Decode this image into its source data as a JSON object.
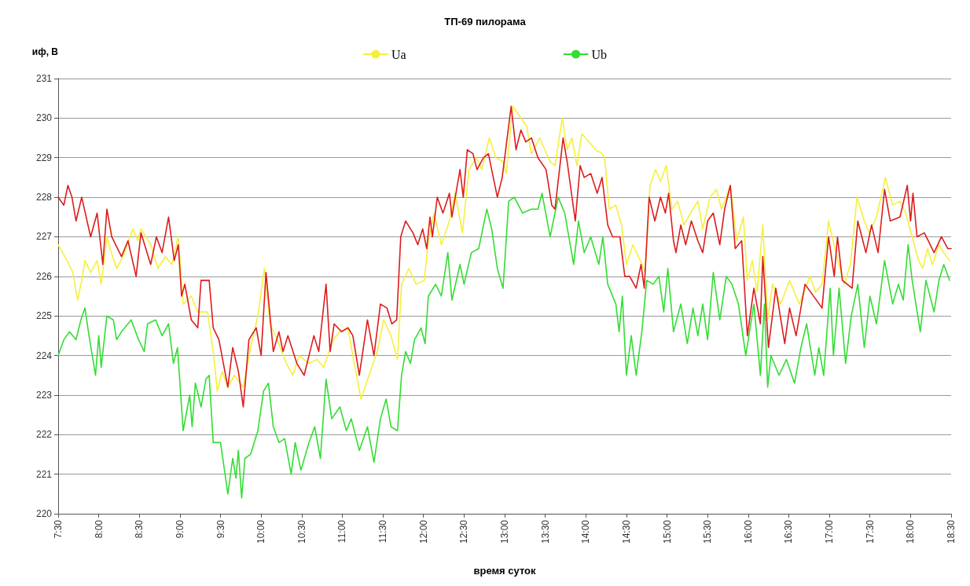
{
  "chart_data": {
    "type": "line",
    "title": "ТП-69 пилорама",
    "xlabel": "время суток",
    "ylabel": "иф, В",
    "xlim": [
      7.5,
      18.5
    ],
    "xticks": [
      {
        "value": 7.5,
        "label": "7:30"
      },
      {
        "value": 8,
        "label": "8:00"
      },
      {
        "value": 8.5,
        "label": "8:30"
      },
      {
        "value": 9,
        "label": "9:00"
      },
      {
        "value": 9.5,
        "label": "9:30"
      },
      {
        "value": 10,
        "label": "10:00"
      },
      {
        "value": 10.5,
        "label": "10:30"
      },
      {
        "value": 11,
        "label": "11:00"
      },
      {
        "value": 11.5,
        "label": "11:30"
      },
      {
        "value": 12,
        "label": "12:00"
      },
      {
        "value": 12.5,
        "label": "12:30"
      },
      {
        "value": 13,
        "label": "13:00"
      },
      {
        "value": 13.5,
        "label": "13:30"
      },
      {
        "value": 14,
        "label": "14:00"
      },
      {
        "value": 14.5,
        "label": "14:30"
      },
      {
        "value": 15,
        "label": "15:00"
      },
      {
        "value": 15.5,
        "label": "15:30"
      },
      {
        "value": 16,
        "label": "16:00"
      },
      {
        "value": 16.5,
        "label": "16:30"
      },
      {
        "value": 17,
        "label": "17:00"
      },
      {
        "value": 17.5,
        "label": "17:30"
      },
      {
        "value": 18,
        "label": "18:00"
      },
      {
        "value": 18.5,
        "label": "18:30"
      }
    ],
    "ylim": [
      220,
      231
    ],
    "yticks": [
      220,
      221,
      222,
      223,
      224,
      225,
      226,
      227,
      228,
      229,
      230,
      231
    ],
    "grid": "y",
    "legend": "top",
    "marker": "none",
    "line_style": "solid",
    "series": [
      {
        "name": "Ua",
        "color": "#f5f03c",
        "x": [
          7.5,
          7.61,
          7.68,
          7.74,
          7.79,
          7.83,
          7.9,
          7.98,
          8.03,
          8.1,
          8.14,
          8.22,
          8.3,
          8.42,
          8.48,
          8.52,
          8.64,
          8.73,
          8.82,
          8.9,
          8.98,
          9.04,
          9.14,
          9.22,
          9.34,
          9.41,
          9.46,
          9.52,
          9.59,
          9.67,
          9.78,
          9.87,
          9.96,
          10.04,
          10.11,
          10.22,
          10.31,
          10.39,
          10.47,
          10.59,
          10.69,
          10.77,
          10.89,
          10.97,
          11.07,
          11.13,
          11.23,
          11.33,
          11.43,
          11.51,
          11.6,
          11.68,
          11.73,
          11.82,
          11.91,
          12.01,
          12.06,
          12.13,
          12.22,
          12.32,
          12.39,
          12.48,
          12.56,
          12.65,
          12.72,
          12.81,
          12.89,
          12.98,
          13.02,
          13.1,
          13.27,
          13.33,
          13.43,
          13.56,
          13.62,
          13.71,
          13.77,
          13.83,
          13.89,
          13.95,
          14.04,
          14.12,
          14.2,
          14.23,
          14.29,
          14.37,
          14.44,
          14.5,
          14.58,
          14.67,
          14.73,
          14.79,
          14.86,
          14.92,
          14.99,
          15.06,
          15.13,
          15.21,
          15.29,
          15.38,
          15.44,
          15.53,
          15.61,
          15.67,
          15.73,
          15.78,
          15.86,
          15.94,
          15.99,
          16.05,
          16.11,
          16.18,
          16.24,
          16.3,
          16.4,
          16.51,
          16.63,
          16.76,
          16.83,
          16.91,
          16.99,
          17.08,
          17.18,
          17.26,
          17.34,
          17.43,
          17.49,
          17.58,
          17.69,
          17.78,
          17.87,
          17.94,
          18.02,
          18.1,
          18.15,
          18.21,
          18.27,
          18.35,
          18.41,
          18.48
        ],
        "values": [
          226.8,
          226.4,
          226.1,
          225.4,
          225.9,
          226.4,
          226.1,
          226.4,
          225.8,
          227.0,
          226.7,
          226.2,
          226.5,
          227.2,
          226.9,
          227.2,
          226.8,
          226.2,
          226.5,
          226.3,
          227.0,
          225.3,
          225.5,
          225.1,
          225.1,
          224.1,
          223.1,
          223.6,
          223.2,
          223.5,
          223.2,
          224.2,
          225.0,
          226.2,
          224.8,
          224.3,
          223.8,
          223.5,
          224.0,
          223.8,
          223.9,
          223.7,
          224.4,
          224.6,
          224.7,
          224.0,
          222.9,
          223.5,
          224.1,
          224.9,
          224.5,
          223.9,
          225.8,
          226.2,
          225.8,
          225.9,
          226.9,
          227.6,
          226.8,
          227.4,
          228.1,
          227.1,
          228.7,
          229.0,
          228.7,
          229.5,
          229.0,
          228.9,
          228.6,
          230.3,
          229.8,
          229.1,
          229.5,
          228.9,
          228.8,
          230.0,
          229.2,
          229.5,
          228.8,
          229.6,
          229.4,
          229.2,
          229.1,
          229.0,
          227.7,
          227.8,
          227.3,
          226.3,
          226.8,
          226.4,
          226.1,
          228.3,
          228.7,
          228.4,
          228.8,
          227.7,
          227.9,
          227.3,
          227.6,
          227.9,
          227.2,
          228.0,
          228.2,
          227.7,
          228.0,
          228.3,
          226.9,
          227.5,
          225.9,
          226.4,
          225.6,
          227.3,
          224.9,
          225.8,
          225.3,
          225.9,
          225.3,
          226.0,
          225.6,
          225.8,
          227.4,
          226.6,
          225.8,
          226.3,
          228.0,
          227.4,
          227.1,
          227.5,
          228.5,
          227.8,
          227.9,
          227.6,
          227.0,
          226.4,
          226.2,
          226.7,
          226.3,
          226.8,
          226.6,
          226.4
        ]
      },
      {
        "name": "Ub",
        "color": "#33dd33",
        "x": [
          7.5,
          7.57,
          7.64,
          7.72,
          7.78,
          7.83,
          7.88,
          7.96,
          8.0,
          8.03,
          8.1,
          8.18,
          8.22,
          8.28,
          8.4,
          8.49,
          8.56,
          8.6,
          8.7,
          8.78,
          8.86,
          8.92,
          8.97,
          9.04,
          9.12,
          9.15,
          9.19,
          9.26,
          9.32,
          9.36,
          9.41,
          9.5,
          9.59,
          9.65,
          9.69,
          9.72,
          9.76,
          9.8,
          9.87,
          9.96,
          10.03,
          10.09,
          10.15,
          10.22,
          10.29,
          10.37,
          10.42,
          10.49,
          10.59,
          10.66,
          10.73,
          10.8,
          10.87,
          10.97,
          11.05,
          11.11,
          11.21,
          11.31,
          11.39,
          11.47,
          11.54,
          11.6,
          11.68,
          11.73,
          11.78,
          11.84,
          11.89,
          11.97,
          12.02,
          12.06,
          12.15,
          12.22,
          12.3,
          12.35,
          12.45,
          12.5,
          12.59,
          12.68,
          12.78,
          12.84,
          12.91,
          12.98,
          13.05,
          13.12,
          13.22,
          13.33,
          13.41,
          13.46,
          13.56,
          13.66,
          13.74,
          13.85,
          13.91,
          13.98,
          14.06,
          14.16,
          14.21,
          14.27,
          14.37,
          14.41,
          14.45,
          14.5,
          14.56,
          14.62,
          14.69,
          14.75,
          14.83,
          14.9,
          14.96,
          15.01,
          15.08,
          15.17,
          15.25,
          15.32,
          15.38,
          15.44,
          15.5,
          15.57,
          15.65,
          15.73,
          15.8,
          15.88,
          15.97,
          16.07,
          16.15,
          16.2,
          16.24,
          16.28,
          16.38,
          16.47,
          16.57,
          16.65,
          16.72,
          16.82,
          16.87,
          16.93,
          17.01,
          17.05,
          17.12,
          17.2,
          17.27,
          17.35,
          17.43,
          17.5,
          17.58,
          17.68,
          17.78,
          17.85,
          17.91,
          17.97,
          18.02,
          18.12,
          18.19,
          18.29,
          18.35,
          18.41,
          18.48
        ],
        "values": [
          224.0,
          224.4,
          224.6,
          224.4,
          224.9,
          225.2,
          224.5,
          223.5,
          224.5,
          223.7,
          225.0,
          224.9,
          224.4,
          224.6,
          224.9,
          224.4,
          224.1,
          224.8,
          224.9,
          224.5,
          224.8,
          223.8,
          224.2,
          222.1,
          223.0,
          222.2,
          223.3,
          222.7,
          223.4,
          223.5,
          221.8,
          221.8,
          220.5,
          221.4,
          220.9,
          221.6,
          220.4,
          221.4,
          221.5,
          222.1,
          223.1,
          223.3,
          222.2,
          221.8,
          221.9,
          221.0,
          221.8,
          221.1,
          221.8,
          222.2,
          221.4,
          223.4,
          222.4,
          222.7,
          222.1,
          222.4,
          221.6,
          222.2,
          221.3,
          222.4,
          222.9,
          222.2,
          222.1,
          223.5,
          224.1,
          223.8,
          224.4,
          224.7,
          224.3,
          225.5,
          225.8,
          225.5,
          226.6,
          225.4,
          226.3,
          225.8,
          226.6,
          226.7,
          227.7,
          227.2,
          226.2,
          225.7,
          227.9,
          228.0,
          227.6,
          227.7,
          227.7,
          228.1,
          227.0,
          228.0,
          227.6,
          226.3,
          227.4,
          226.6,
          227.0,
          226.3,
          227.0,
          225.8,
          225.3,
          224.6,
          225.5,
          223.5,
          224.5,
          223.5,
          224.6,
          225.9,
          225.8,
          226.0,
          225.1,
          226.2,
          224.6,
          225.3,
          224.3,
          225.2,
          224.5,
          225.3,
          224.4,
          226.1,
          224.9,
          226.0,
          225.8,
          225.3,
          224.0,
          225.3,
          223.5,
          225.3,
          223.2,
          224.0,
          223.5,
          223.9,
          223.3,
          224.2,
          224.8,
          223.5,
          224.2,
          223.5,
          225.7,
          224.0,
          225.7,
          223.8,
          225.0,
          225.8,
          224.2,
          225.5,
          224.8,
          226.4,
          225.3,
          225.8,
          225.4,
          226.8,
          225.9,
          224.6,
          225.9,
          225.1,
          225.9,
          226.3,
          225.9
        ]
      },
      {
        "color": "#dd1c1c",
        "x": [
          7.5,
          7.57,
          7.62,
          7.67,
          7.72,
          7.79,
          7.9,
          7.98,
          8.05,
          8.1,
          8.16,
          8.28,
          8.36,
          8.46,
          8.52,
          8.64,
          8.71,
          8.78,
          8.86,
          8.93,
          8.98,
          9.02,
          9.06,
          9.14,
          9.22,
          9.26,
          9.36,
          9.41,
          9.48,
          9.59,
          9.65,
          9.72,
          9.78,
          9.85,
          9.94,
          10.0,
          10.06,
          10.15,
          10.22,
          10.27,
          10.33,
          10.44,
          10.53,
          10.65,
          10.71,
          10.8,
          10.85,
          10.9,
          10.99,
          11.07,
          11.13,
          11.21,
          11.31,
          11.39,
          11.47,
          11.55,
          11.61,
          11.67,
          11.72,
          11.78,
          11.87,
          11.93,
          11.99,
          12.04,
          12.08,
          12.11,
          12.17,
          12.24,
          12.32,
          12.35,
          12.45,
          12.49,
          12.54,
          12.61,
          12.66,
          12.74,
          12.8,
          12.91,
          12.97,
          13.08,
          13.14,
          13.2,
          13.26,
          13.33,
          13.41,
          13.51,
          13.58,
          13.62,
          13.72,
          13.77,
          13.87,
          13.93,
          13.98,
          14.06,
          14.14,
          14.2,
          14.27,
          14.33,
          14.42,
          14.48,
          14.54,
          14.62,
          14.68,
          14.72,
          14.78,
          14.85,
          14.92,
          14.98,
          15.02,
          15.08,
          15.11,
          15.17,
          15.23,
          15.3,
          15.38,
          15.44,
          15.5,
          15.57,
          15.65,
          15.71,
          15.78,
          15.84,
          15.92,
          15.99,
          16.07,
          16.15,
          16.18,
          16.25,
          16.34,
          16.45,
          16.51,
          16.59,
          16.7,
          16.91,
          16.99,
          17.06,
          17.1,
          17.16,
          17.28,
          17.35,
          17.45,
          17.52,
          17.6,
          17.68,
          17.75,
          17.87,
          17.96,
          18.0,
          18.03,
          18.08,
          18.17,
          18.29,
          18.38,
          18.46,
          18.5
        ],
        "values": [
          228.0,
          227.8,
          228.3,
          228.0,
          227.4,
          228.0,
          227.0,
          227.6,
          226.3,
          227.7,
          227.0,
          226.5,
          226.9,
          226.0,
          227.1,
          226.3,
          227.0,
          226.6,
          227.5,
          226.4,
          226.8,
          225.5,
          225.8,
          224.9,
          224.7,
          225.9,
          225.9,
          224.7,
          224.4,
          223.2,
          224.2,
          223.6,
          222.7,
          224.4,
          224.7,
          224.0,
          226.1,
          224.1,
          224.6,
          224.1,
          224.5,
          223.8,
          223.5,
          224.5,
          224.1,
          225.8,
          224.1,
          224.8,
          224.6,
          224.7,
          224.5,
          223.5,
          224.9,
          224.0,
          225.3,
          225.2,
          224.8,
          224.9,
          227.0,
          227.4,
          227.1,
          226.8,
          227.2,
          226.7,
          227.5,
          227.0,
          228.0,
          227.6,
          228.1,
          227.5,
          228.7,
          228.0,
          229.2,
          229.1,
          228.7,
          229.0,
          229.1,
          228.0,
          228.5,
          230.3,
          229.2,
          229.7,
          229.4,
          229.5,
          229.0,
          228.7,
          227.8,
          227.7,
          229.5,
          228.9,
          227.4,
          228.8,
          228.5,
          228.6,
          228.1,
          228.5,
          227.3,
          227.0,
          227.0,
          226.0,
          226.0,
          225.7,
          226.3,
          225.7,
          228.0,
          227.4,
          228.0,
          227.6,
          228.1,
          226.9,
          226.6,
          227.3,
          226.8,
          227.4,
          226.9,
          226.6,
          227.4,
          227.6,
          226.8,
          227.7,
          228.3,
          226.7,
          226.9,
          224.5,
          225.7,
          224.8,
          226.5,
          224.2,
          225.7,
          224.3,
          225.2,
          224.5,
          225.8,
          225.2,
          227.0,
          226.0,
          227.0,
          225.9,
          225.7,
          227.4,
          226.6,
          227.3,
          226.6,
          228.2,
          227.4,
          227.5,
          228.3,
          227.4,
          228.1,
          227.0,
          227.1,
          226.6,
          227.0,
          226.7,
          226.7
        ]
      }
    ]
  }
}
